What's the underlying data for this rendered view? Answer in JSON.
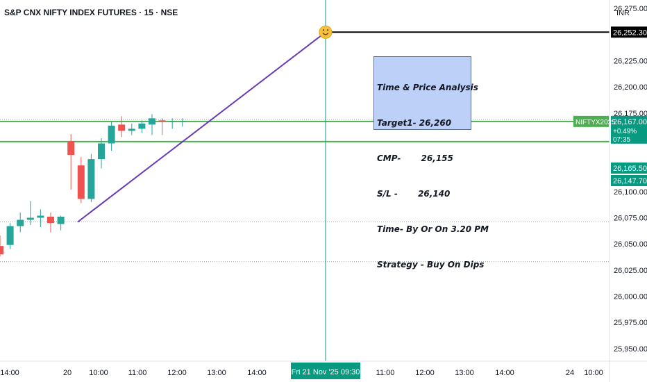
{
  "header": {
    "symbol_title": "S&P CNX NIFTY INDEX FUTURES · 15 · NSE",
    "currency": "INR"
  },
  "annotation": {
    "lines": [
      "Time & Price Analysis",
      "Target1- 26,260",
      "CMP-       26,155",
      "S/L -       26,140",
      "Time- By Or On 3.20 PM",
      "Strategy - Buy On Dips"
    ]
  },
  "chart_data": {
    "type": "candlestick",
    "symbol": "NIFTYX2025",
    "x_ticks": [
      "14:00",
      "20",
      "10:00",
      "11:00",
      "12:00",
      "13:00",
      "14:00",
      "11:00",
      "12:00",
      "13:00",
      "14:00",
      "24",
      "10:00"
    ],
    "crosshair_label": "Fri 21 Nov '25   09:30",
    "y_ticks": [
      "26,275.00",
      "26,225.00",
      "26,200.00",
      "26,175.00",
      "26,100.00",
      "26,075.00",
      "26,050.00",
      "26,025.00",
      "26,000.00",
      "25,975.00",
      "25,950.00"
    ],
    "ylim": [
      25938,
      26283
    ],
    "candles": [
      {
        "o": 26048,
        "h": 26058,
        "l": 26038,
        "c": 26040
      },
      {
        "o": 26049,
        "h": 26070,
        "l": 26045,
        "c": 26067
      },
      {
        "o": 26067,
        "h": 26080,
        "l": 26061,
        "c": 26073
      },
      {
        "o": 26073,
        "h": 26091,
        "l": 26068,
        "c": 26075
      },
      {
        "o": 26075,
        "h": 26083,
        "l": 26066,
        "c": 26077
      },
      {
        "o": 26076,
        "h": 26080,
        "l": 26061,
        "c": 26070
      },
      {
        "o": 26069,
        "h": 26077,
        "l": 26063,
        "c": 26076
      },
      {
        "o": 26148,
        "h": 26155,
        "l": 26102,
        "c": 26135
      },
      {
        "o": 26125,
        "h": 26133,
        "l": 26089,
        "c": 26093
      },
      {
        "o": 26093,
        "h": 26136,
        "l": 26090,
        "c": 26131
      },
      {
        "o": 26131,
        "h": 26151,
        "l": 26122,
        "c": 26146
      },
      {
        "o": 26146,
        "h": 26167,
        "l": 26139,
        "c": 26163
      },
      {
        "o": 26164,
        "h": 26172,
        "l": 26152,
        "c": 26158
      },
      {
        "o": 26158,
        "h": 26165,
        "l": 26154,
        "c": 26160
      },
      {
        "o": 26160,
        "h": 26168,
        "l": 26156,
        "c": 26165
      },
      {
        "o": 26164,
        "h": 26174,
        "l": 26154,
        "c": 26170
      },
      {
        "o": 26168,
        "h": 26170,
        "l": 26154,
        "c": 26167
      },
      {
        "o": 26167,
        "h": 26170,
        "l": 26160,
        "c": 26167
      },
      {
        "o": 26167,
        "h": 26170,
        "l": 26162,
        "c": 26167
      }
    ],
    "price_tags": [
      {
        "value": "26,252.30",
        "style": "black"
      },
      {
        "value": "26,167.00",
        "style": "green",
        "extra": [
          "+0.49%",
          "07:35"
        ],
        "name_label": "NIFTYX2025"
      },
      {
        "value": "26,165.50",
        "style": "green"
      },
      {
        "value": "26,147.70",
        "style": "green"
      }
    ],
    "levels": {
      "target_line": 26252.3,
      "green_upper": 26167,
      "green_lower": 26147.7,
      "dotted_1": 26169,
      "dotted_2": 26071,
      "dotted_3": 26033
    },
    "trendline": {
      "from_price": 26071,
      "to_price": 26252.3
    },
    "colors": {
      "up": "#26a69a",
      "down": "#ef5350",
      "green_line": "#4caf50",
      "trend": "#673ab7",
      "crosshair": "#089981",
      "marker": "#f5c242"
    },
    "grid": false
  }
}
